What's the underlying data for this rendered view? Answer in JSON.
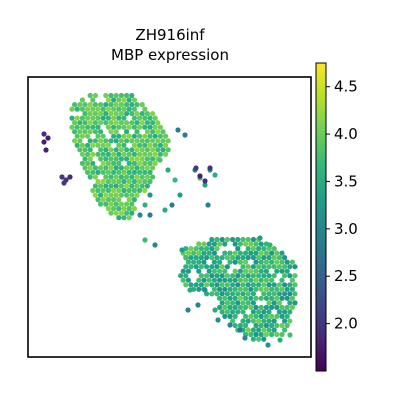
{
  "chart_data": {
    "type": "scatter",
    "title_lines": [
      "ZH916inf",
      "MBP expression"
    ],
    "xlabel": "",
    "ylabel": "",
    "colorbar": {
      "colormap": "viridis",
      "range": [
        1.5,
        4.75
      ],
      "ticks": [
        2.0,
        2.5,
        3.0,
        3.5,
        4.0,
        4.5
      ],
      "tick_labels": [
        "2.0",
        "2.5",
        "3.0",
        "3.5",
        "4.0",
        "4.5"
      ]
    },
    "grid": false,
    "legend": "none",
    "clusters": [
      {
        "name": "upper-left tissue",
        "value_mean": 3.85,
        "value_spread": 0.35
      },
      {
        "name": "lower-right tissue",
        "value_mean": 3.6,
        "value_spread": 0.45
      },
      {
        "name": "outlier spots",
        "value_mean": 1.9,
        "value_spread": 0.15
      }
    ]
  }
}
